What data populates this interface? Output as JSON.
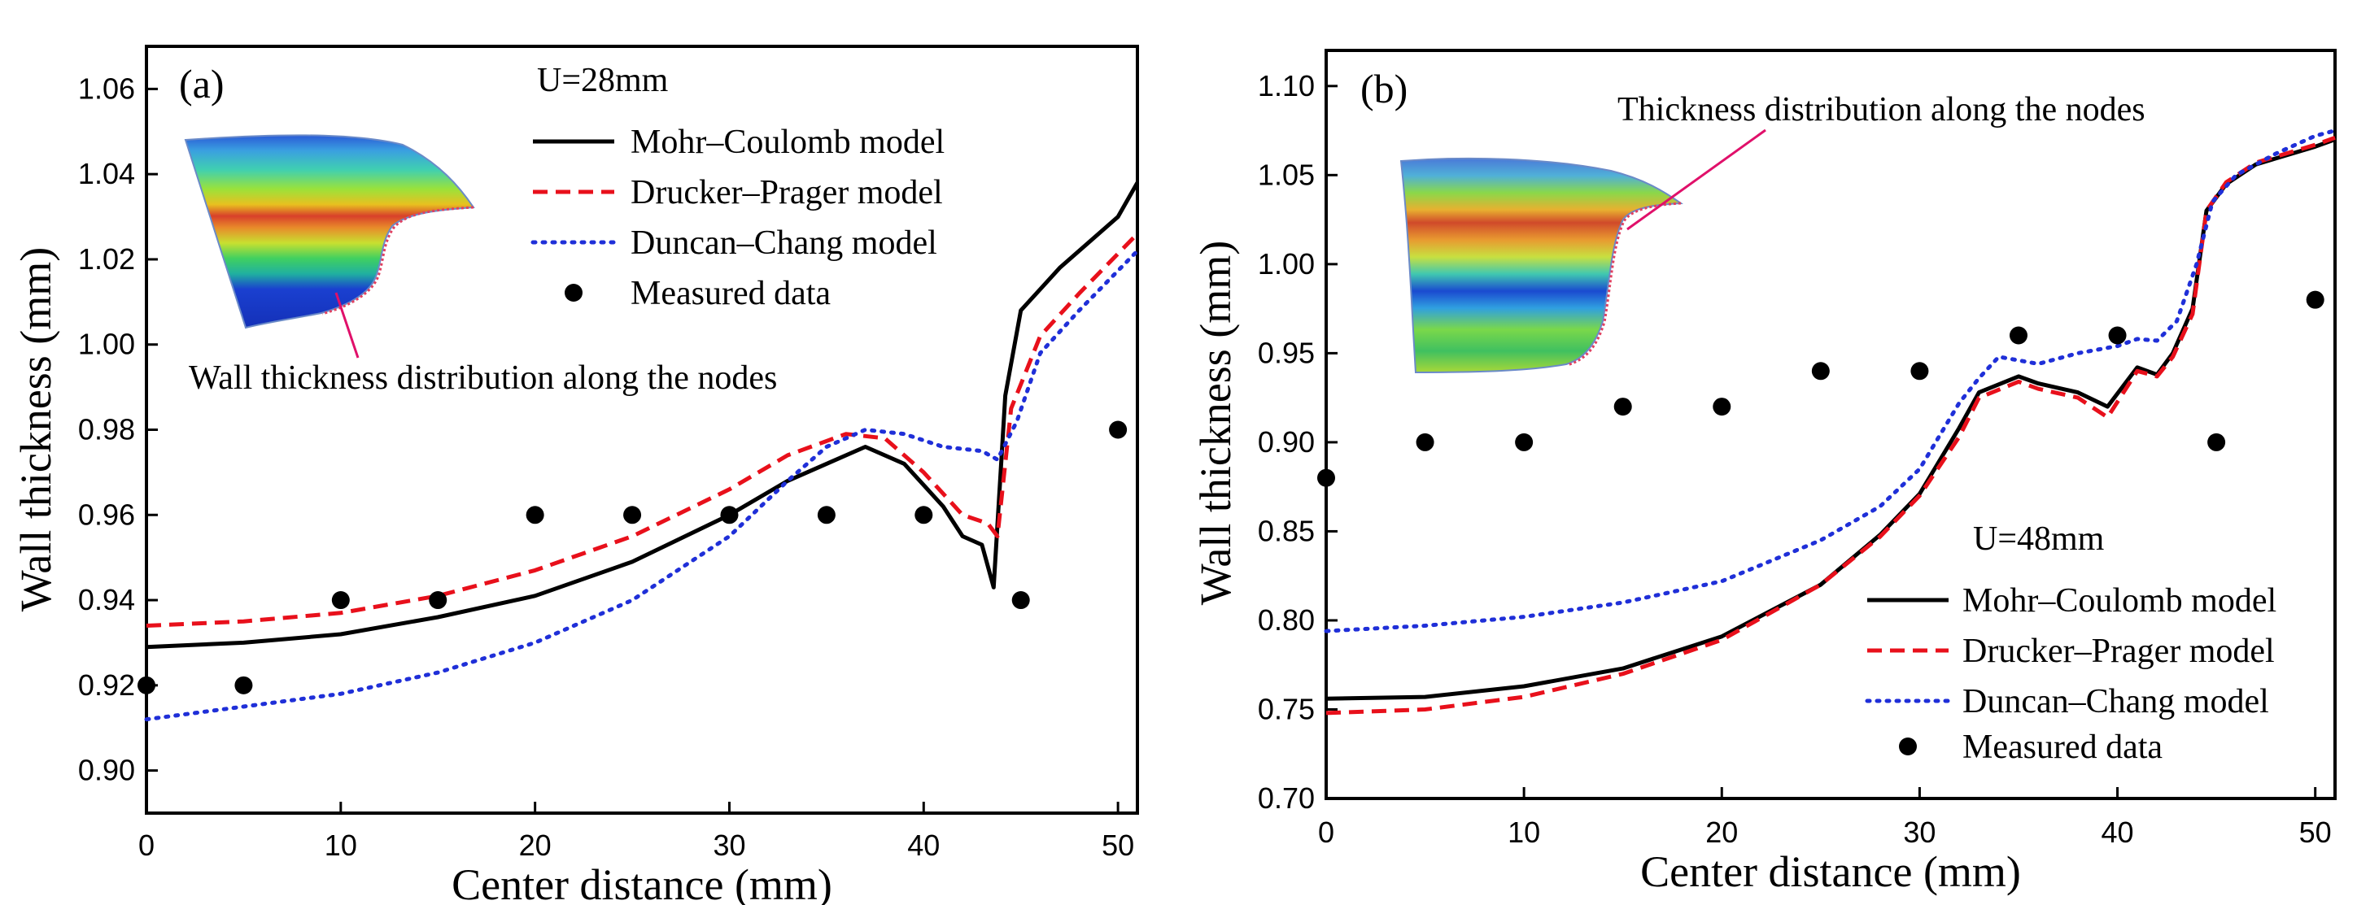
{
  "chart_data": [
    {
      "type": "line",
      "panel_label": "(a)",
      "condition_label": "U=28mm",
      "xlabel": "Center distance (mm)",
      "ylabel": "Wall thickness (mm)",
      "xlim": [
        0,
        51
      ],
      "ylim": [
        0.89,
        1.07
      ],
      "x_ticks": [
        0,
        10,
        20,
        30,
        40,
        50
      ],
      "x_tick_labels": [
        "0",
        "10",
        "20",
        "30",
        "40",
        "50"
      ],
      "y_ticks": [
        0.9,
        0.92,
        0.94,
        0.96,
        0.98,
        1.0,
        1.02,
        1.04,
        1.06
      ],
      "y_tick_labels": [
        "0.90",
        "0.92",
        "0.94",
        "0.96",
        "0.98",
        "1.00",
        "1.02",
        "1.04",
        "1.06"
      ],
      "inset_annotation": "Wall thickness distribution along the nodes",
      "legend_position": "top-center",
      "series": [
        {
          "name": "Mohr–Coulomb model",
          "style": "solid",
          "color": "#000000",
          "points": [
            [
              0,
              0.929
            ],
            [
              5,
              0.93
            ],
            [
              10,
              0.932
            ],
            [
              15,
              0.936
            ],
            [
              20,
              0.941
            ],
            [
              25,
              0.949
            ],
            [
              30,
              0.96
            ],
            [
              33,
              0.968
            ],
            [
              35,
              0.972
            ],
            [
              37,
              0.976
            ],
            [
              39,
              0.972
            ],
            [
              40,
              0.967
            ],
            [
              41,
              0.962
            ],
            [
              42,
              0.955
            ],
            [
              43,
              0.953
            ],
            [
              43.6,
              0.943
            ],
            [
              44.2,
              0.988
            ],
            [
              45,
              1.008
            ],
            [
              47,
              1.018
            ],
            [
              50,
              1.03
            ],
            [
              51,
              1.038
            ]
          ]
        },
        {
          "name": "Drucker–Prager model",
          "style": "dashed",
          "color": "#e8101b",
          "points": [
            [
              0,
              0.934
            ],
            [
              5,
              0.935
            ],
            [
              10,
              0.937
            ],
            [
              15,
              0.941
            ],
            [
              20,
              0.947
            ],
            [
              25,
              0.955
            ],
            [
              30,
              0.966
            ],
            [
              33,
              0.974
            ],
            [
              36,
              0.979
            ],
            [
              38,
              0.978
            ],
            [
              40,
              0.97
            ],
            [
              42,
              0.96
            ],
            [
              43.3,
              0.958
            ],
            [
              43.8,
              0.955
            ],
            [
              44.5,
              0.985
            ],
            [
              46,
              1.002
            ],
            [
              48,
              1.012
            ],
            [
              51,
              1.026
            ]
          ]
        },
        {
          "name": "Duncan–Chang model",
          "style": "dotted",
          "color": "#1f2fd8",
          "points": [
            [
              0,
              0.912
            ],
            [
              5,
              0.915
            ],
            [
              10,
              0.918
            ],
            [
              15,
              0.923
            ],
            [
              20,
              0.93
            ],
            [
              25,
              0.94
            ],
            [
              30,
              0.955
            ],
            [
              33,
              0.968
            ],
            [
              35,
              0.976
            ],
            [
              37,
              0.98
            ],
            [
              39,
              0.979
            ],
            [
              41,
              0.976
            ],
            [
              43,
              0.975
            ],
            [
              43.8,
              0.973
            ],
            [
              44.8,
              0.982
            ],
            [
              46,
              0.998
            ],
            [
              48,
              1.008
            ],
            [
              51,
              1.022
            ]
          ]
        },
        {
          "name": "Measured data",
          "style": "markers",
          "color": "#000000",
          "points": [
            [
              0,
              0.92
            ],
            [
              5,
              0.92
            ],
            [
              10,
              0.94
            ],
            [
              15,
              0.94
            ],
            [
              20,
              0.96
            ],
            [
              25,
              0.96
            ],
            [
              30,
              0.96
            ],
            [
              35,
              0.96
            ],
            [
              40,
              0.96
            ],
            [
              45,
              0.94
            ],
            [
              50,
              0.98
            ]
          ]
        }
      ]
    },
    {
      "type": "line",
      "panel_label": "(b)",
      "condition_label": "U=48mm",
      "xlabel": "Center distance (mm)",
      "ylabel": "Wall thickness (mm)",
      "xlim": [
        0,
        51
      ],
      "ylim": [
        0.7,
        1.12
      ],
      "x_ticks": [
        0,
        10,
        20,
        30,
        40,
        50
      ],
      "x_tick_labels": [
        "0",
        "10",
        "20",
        "30",
        "40",
        "50"
      ],
      "y_ticks": [
        0.7,
        0.75,
        0.8,
        0.85,
        0.9,
        0.95,
        1.0,
        1.05,
        1.1
      ],
      "y_tick_labels": [
        "0.70",
        "0.75",
        "0.80",
        "0.85",
        "0.90",
        "0.95",
        "1.00",
        "1.05",
        "1.10"
      ],
      "inset_annotation": "Thickness distribution along the nodes",
      "legend_position": "bottom-right",
      "series": [
        {
          "name": "Mohr–Coulomb model",
          "style": "solid",
          "color": "#000000",
          "points": [
            [
              0,
              0.756
            ],
            [
              5,
              0.757
            ],
            [
              10,
              0.763
            ],
            [
              15,
              0.773
            ],
            [
              20,
              0.791
            ],
            [
              25,
              0.82
            ],
            [
              28,
              0.848
            ],
            [
              30,
              0.871
            ],
            [
              32,
              0.908
            ],
            [
              33,
              0.928
            ],
            [
              35,
              0.937
            ],
            [
              36,
              0.933
            ],
            [
              38,
              0.928
            ],
            [
              39.5,
              0.92
            ],
            [
              41,
              0.942
            ],
            [
              42,
              0.938
            ],
            [
              42.8,
              0.95
            ],
            [
              43.8,
              0.975
            ],
            [
              44.5,
              1.03
            ],
            [
              45.5,
              1.045
            ],
            [
              47,
              1.056
            ],
            [
              50,
              1.066
            ],
            [
              51,
              1.07
            ]
          ]
        },
        {
          "name": "Drucker–Prager model",
          "style": "dashed",
          "color": "#e8101b",
          "points": [
            [
              0,
              0.748
            ],
            [
              5,
              0.75
            ],
            [
              10,
              0.757
            ],
            [
              15,
              0.77
            ],
            [
              20,
              0.789
            ],
            [
              25,
              0.82
            ],
            [
              28,
              0.847
            ],
            [
              30,
              0.87
            ],
            [
              32,
              0.903
            ],
            [
              33,
              0.925
            ],
            [
              35,
              0.934
            ],
            [
              36,
              0.93
            ],
            [
              38,
              0.925
            ],
            [
              39.5,
              0.914
            ],
            [
              41,
              0.94
            ],
            [
              42,
              0.937
            ],
            [
              42.8,
              0.948
            ],
            [
              43.8,
              0.972
            ],
            [
              44.5,
              1.03
            ],
            [
              45.5,
              1.046
            ],
            [
              47,
              1.057
            ],
            [
              50,
              1.067
            ],
            [
              51,
              1.071
            ]
          ]
        },
        {
          "name": "Duncan–Chang model",
          "style": "dotted",
          "color": "#1f2fd8",
          "points": [
            [
              0,
              0.794
            ],
            [
              5,
              0.797
            ],
            [
              10,
              0.802
            ],
            [
              15,
              0.81
            ],
            [
              20,
              0.822
            ],
            [
              25,
              0.845
            ],
            [
              28,
              0.864
            ],
            [
              30,
              0.885
            ],
            [
              32,
              0.922
            ],
            [
              33,
              0.936
            ],
            [
              34,
              0.948
            ],
            [
              36,
              0.944
            ],
            [
              38,
              0.95
            ],
            [
              40,
              0.954
            ],
            [
              41,
              0.958
            ],
            [
              42,
              0.957
            ],
            [
              43,
              0.968
            ],
            [
              44,
              1.0
            ],
            [
              44.8,
              1.035
            ],
            [
              46,
              1.05
            ],
            [
              48,
              1.062
            ],
            [
              50,
              1.072
            ],
            [
              51,
              1.075
            ]
          ]
        },
        {
          "name": "Measured data",
          "style": "markers",
          "color": "#000000",
          "points": [
            [
              0,
              0.88
            ],
            [
              5,
              0.9
            ],
            [
              10,
              0.9
            ],
            [
              15,
              0.92
            ],
            [
              20,
              0.92
            ],
            [
              25,
              0.94
            ],
            [
              30,
              0.94
            ],
            [
              35,
              0.96
            ],
            [
              40,
              0.96
            ],
            [
              45,
              0.9
            ],
            [
              50,
              0.98
            ]
          ]
        }
      ]
    }
  ]
}
